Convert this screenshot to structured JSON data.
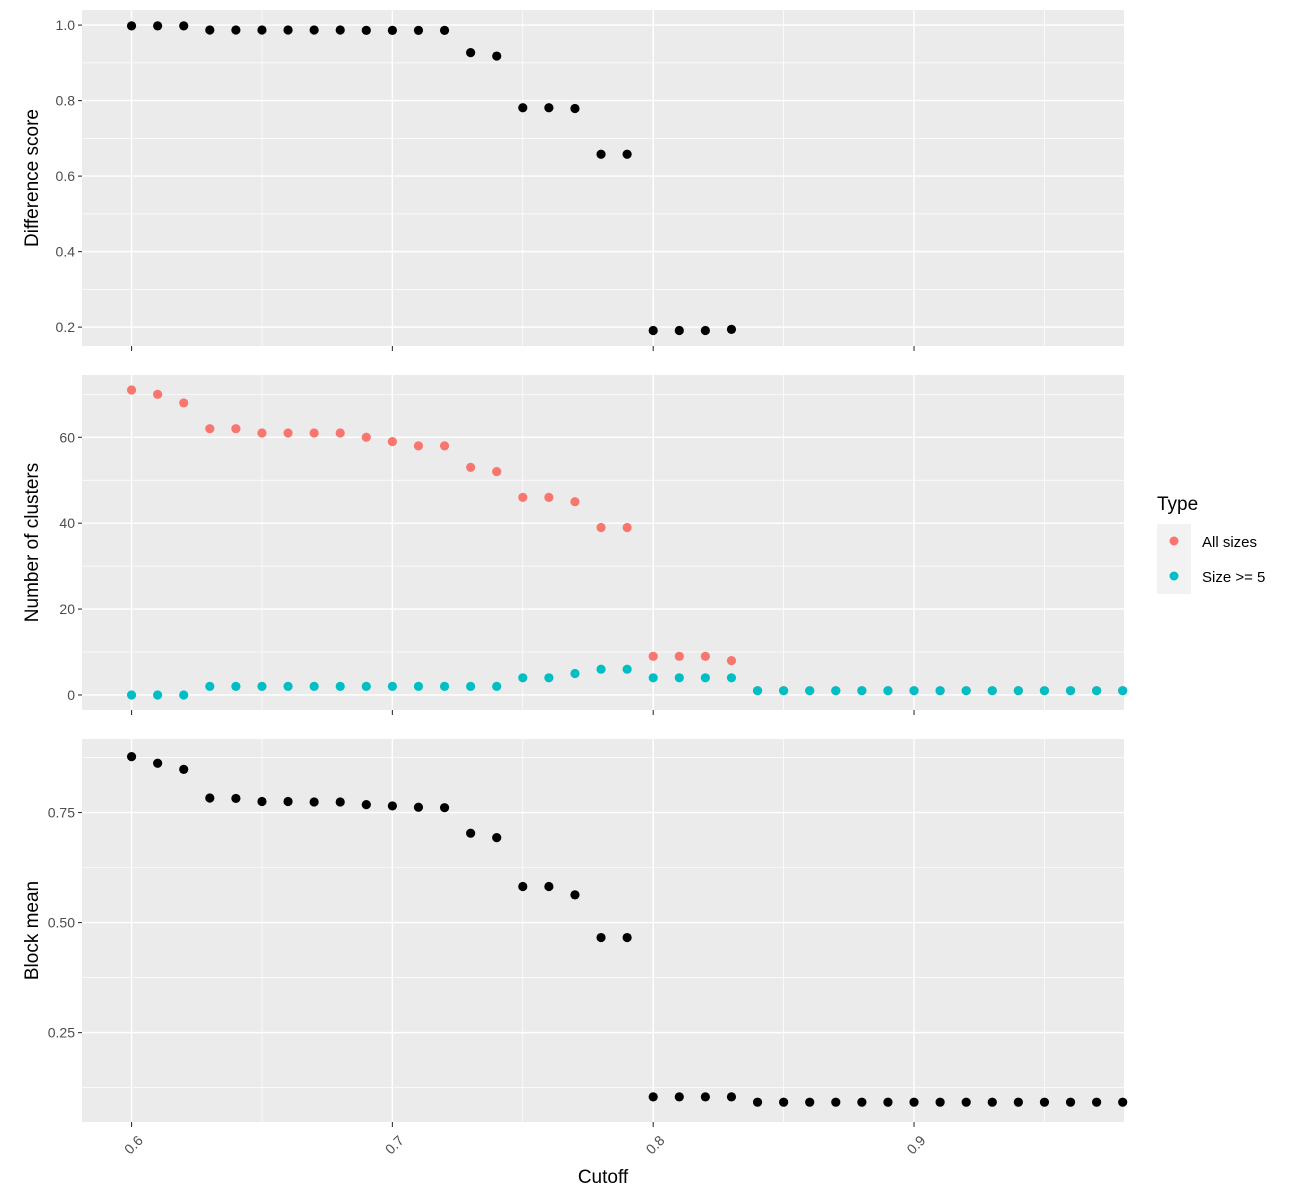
{
  "chart_data": {
    "type": "scatter",
    "xlabel": "Cutoff",
    "x_ticks": [
      "0.6",
      "0.7",
      "0.8",
      "0.9"
    ],
    "x_tick_values": [
      0.6,
      0.7,
      0.8,
      0.9
    ],
    "xlim": [
      0.581,
      0.9805
    ],
    "legend": {
      "title": "Type",
      "placement": "right",
      "entries": [
        {
          "label": "All sizes",
          "color": "#F8766D"
        },
        {
          "label": "Size >= 5",
          "color": "#00BFC4"
        }
      ]
    },
    "colors": {
      "panel_bg": "#EBEBEB",
      "grid": "#FFFFFF",
      "point_default": "#000000",
      "all_sizes": "#F8766D",
      "size_ge_5": "#00BFC4"
    },
    "panels": [
      {
        "ylabel": "Difference score",
        "y_ticks": [
          "0.2",
          "0.4",
          "0.6",
          "0.8",
          "1.0"
        ],
        "y_tick_values": [
          0.2,
          0.4,
          0.6,
          0.8,
          1.0
        ],
        "ylim": [
          0.15,
          1.04
        ],
        "series": [
          {
            "color": "#000000",
            "x": [
              0.6,
              0.61,
              0.62,
              0.63,
              0.64,
              0.65,
              0.66,
              0.67,
              0.68,
              0.69,
              0.7,
              0.71,
              0.72,
              0.73,
              0.74,
              0.75,
              0.76,
              0.77,
              0.78,
              0.79,
              0.8,
              0.81,
              0.82,
              0.83
            ],
            "y": [
              0.998,
              0.998,
              0.998,
              0.987,
              0.987,
              0.987,
              0.987,
              0.987,
              0.987,
              0.986,
              0.986,
              0.986,
              0.986,
              0.927,
              0.918,
              0.781,
              0.781,
              0.779,
              0.658,
              0.658,
              0.191,
              0.191,
              0.191,
              0.194
            ]
          }
        ]
      },
      {
        "ylabel": "Number of clusters",
        "y_ticks": [
          "0",
          "20",
          "40",
          "60"
        ],
        "y_tick_values": [
          0,
          20,
          40,
          60
        ],
        "ylim": [
          -3.5,
          74.5
        ],
        "series": [
          {
            "name": "All sizes",
            "color": "#F8766D",
            "x": [
              0.6,
              0.61,
              0.62,
              0.63,
              0.64,
              0.65,
              0.66,
              0.67,
              0.68,
              0.69,
              0.7,
              0.71,
              0.72,
              0.73,
              0.74,
              0.75,
              0.76,
              0.77,
              0.78,
              0.79,
              0.8,
              0.81,
              0.82,
              0.83,
              0.84,
              0.85,
              0.86,
              0.87,
              0.88,
              0.89,
              0.9,
              0.91,
              0.92,
              0.93,
              0.94,
              0.95,
              0.96,
              0.97,
              0.98
            ],
            "y": [
              71,
              70,
              68,
              62,
              62,
              61,
              61,
              61,
              61,
              60,
              59,
              58,
              58,
              53,
              52,
              46,
              46,
              45,
              39,
              39,
              9,
              9,
              9,
              8,
              1,
              1,
              1,
              1,
              1,
              1,
              1,
              1,
              1,
              1,
              1,
              1,
              1,
              1,
              1
            ]
          },
          {
            "name": "Size >= 5",
            "color": "#00BFC4",
            "x": [
              0.6,
              0.61,
              0.62,
              0.63,
              0.64,
              0.65,
              0.66,
              0.67,
              0.68,
              0.69,
              0.7,
              0.71,
              0.72,
              0.73,
              0.74,
              0.75,
              0.76,
              0.77,
              0.78,
              0.79,
              0.8,
              0.81,
              0.82,
              0.83,
              0.84,
              0.85,
              0.86,
              0.87,
              0.88,
              0.89,
              0.9,
              0.91,
              0.92,
              0.93,
              0.94,
              0.95,
              0.96,
              0.97,
              0.98
            ],
            "y": [
              0,
              0,
              0,
              2,
              2,
              2,
              2,
              2,
              2,
              2,
              2,
              2,
              2,
              2,
              2,
              4,
              4,
              5,
              6,
              6,
              4,
              4,
              4,
              4,
              1,
              1,
              1,
              1,
              1,
              1,
              1,
              1,
              1,
              1,
              1,
              1,
              1,
              1,
              1
            ]
          }
        ]
      },
      {
        "ylabel": "Block mean",
        "y_ticks": [
          "0.25",
          "0.50",
          "0.75"
        ],
        "y_tick_values": [
          0.25,
          0.5,
          0.75
        ],
        "ylim": [
          0.047,
          0.917
        ],
        "series": [
          {
            "color": "#000000",
            "x": [
              0.6,
              0.61,
              0.62,
              0.63,
              0.64,
              0.65,
              0.66,
              0.67,
              0.68,
              0.69,
              0.7,
              0.71,
              0.72,
              0.73,
              0.74,
              0.75,
              0.76,
              0.77,
              0.78,
              0.79,
              0.8,
              0.81,
              0.82,
              0.83,
              0.84,
              0.85,
              0.86,
              0.87,
              0.88,
              0.89,
              0.9,
              0.91,
              0.92,
              0.93,
              0.94,
              0.95,
              0.96,
              0.97,
              0.98
            ],
            "y": [
              0.877,
              0.862,
              0.848,
              0.783,
              0.782,
              0.775,
              0.775,
              0.774,
              0.774,
              0.768,
              0.765,
              0.762,
              0.761,
              0.703,
              0.693,
              0.582,
              0.582,
              0.563,
              0.466,
              0.466,
              0.104,
              0.104,
              0.104,
              0.104,
              0.092,
              0.092,
              0.092,
              0.092,
              0.092,
              0.092,
              0.092,
              0.092,
              0.092,
              0.092,
              0.092,
              0.092,
              0.092,
              0.092,
              0.092
            ]
          }
        ]
      }
    ]
  }
}
